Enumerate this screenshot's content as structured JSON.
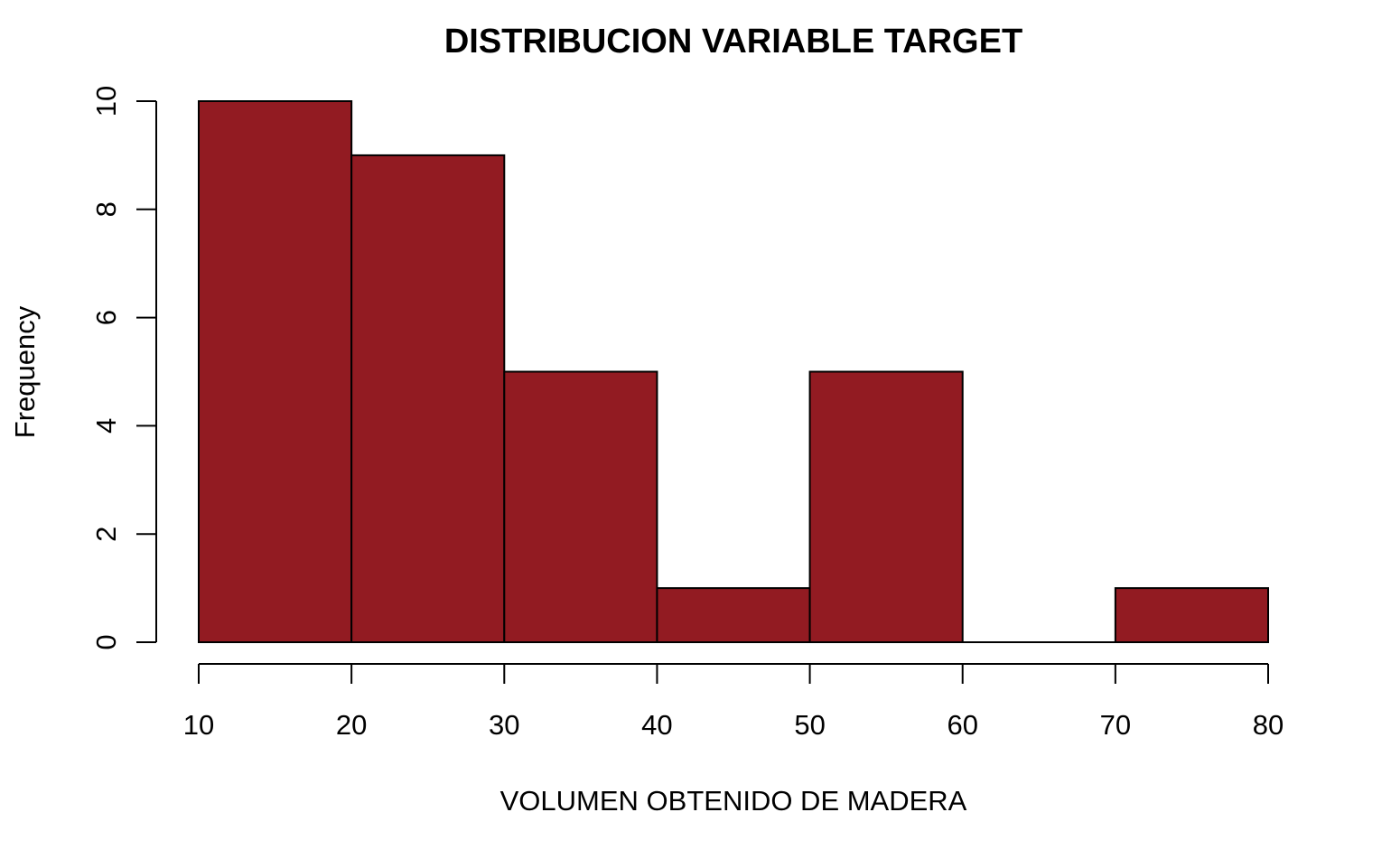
{
  "chart_data": {
    "type": "bar",
    "title": "DISTRIBUCION VARIABLE TARGET",
    "xlabel": "VOLUMEN OBTENIDO DE MADERA",
    "ylabel": "Frequency",
    "bins": [
      {
        "from": 10,
        "to": 20,
        "count": 10
      },
      {
        "from": 20,
        "to": 30,
        "count": 9
      },
      {
        "from": 30,
        "to": 40,
        "count": 5
      },
      {
        "from": 40,
        "to": 50,
        "count": 1
      },
      {
        "from": 50,
        "to": 60,
        "count": 5
      },
      {
        "from": 60,
        "to": 70,
        "count": 0
      },
      {
        "from": 70,
        "to": 80,
        "count": 1
      }
    ],
    "xlim": [
      10,
      80
    ],
    "ylim": [
      0,
      10
    ],
    "xticks": [
      "10",
      "20",
      "30",
      "40",
      "50",
      "60",
      "70",
      "80"
    ],
    "yticks": [
      "0",
      "2",
      "4",
      "6",
      "8",
      "10"
    ],
    "grid": false,
    "bar_color": "#921B22",
    "bar_border_color": "#000000"
  }
}
